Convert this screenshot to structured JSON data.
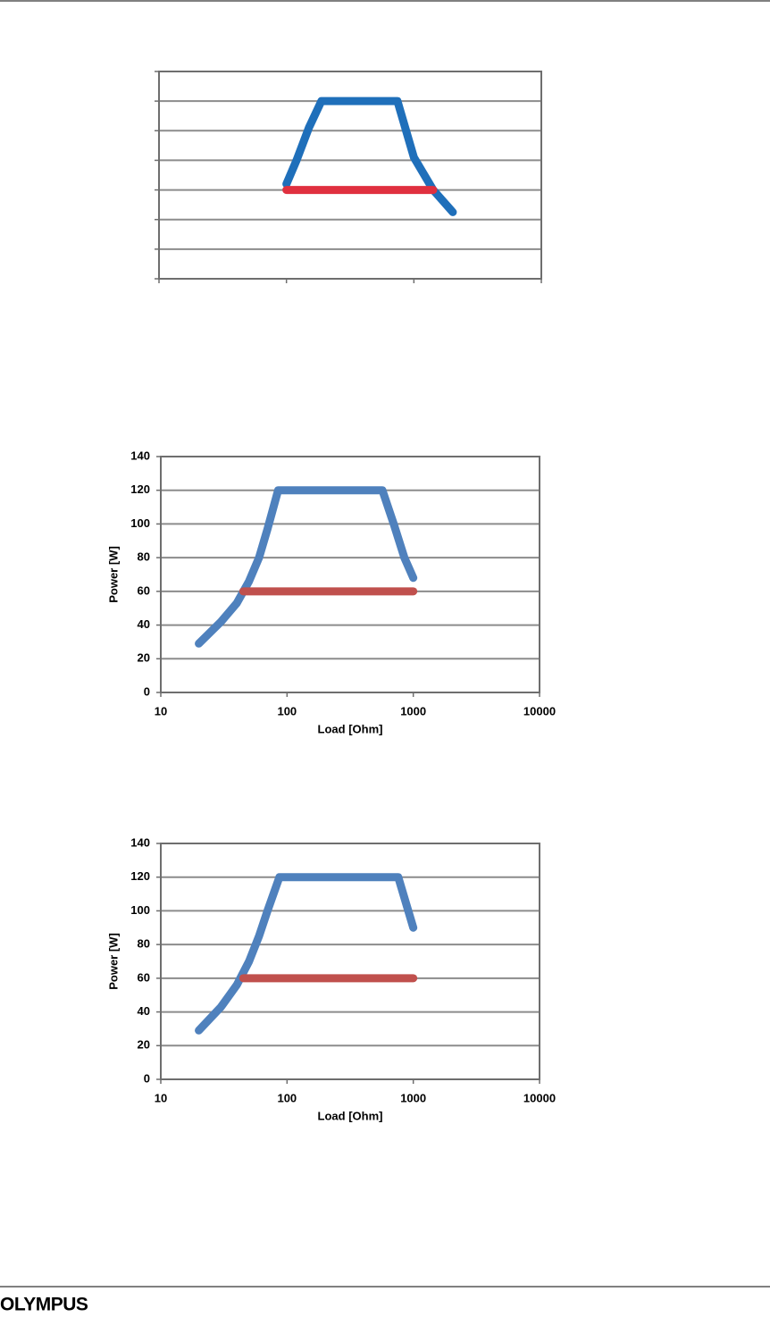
{
  "chart_data": [
    {
      "type": "line",
      "xscale": "log",
      "show_tick_labels": false,
      "grid": true,
      "xlim": [
        10,
        10000
      ],
      "xticks": [
        10,
        100,
        1000,
        10000
      ],
      "ylim": [
        0,
        140
      ],
      "yticks": [
        0,
        20,
        40,
        60,
        80,
        100,
        120,
        140
      ],
      "series": [
        {
          "color": "#1f6fba",
          "x": [
            100,
            120,
            150,
            188,
            743,
            1000,
            1417,
            2020
          ],
          "values": [
            64,
            80,
            102,
            120,
            120,
            82,
            60,
            45
          ]
        },
        {
          "color": "#e0303f",
          "x": [
            100,
            1417
          ],
          "values": [
            60,
            60
          ]
        }
      ]
    },
    {
      "type": "line",
      "xscale": "log",
      "show_tick_labels": true,
      "grid": true,
      "x_label": "Load [Ohm]",
      "y_label": "Power [W]",
      "xlim": [
        10,
        10000
      ],
      "xticks": [
        10,
        100,
        1000,
        10000
      ],
      "ylim": [
        0,
        140
      ],
      "yticks": [
        0,
        20,
        40,
        60,
        80,
        100,
        120,
        140
      ],
      "series": [
        {
          "color": "#4f81bd",
          "x": [
            20,
            30,
            40,
            50,
            60,
            70,
            85,
            569,
            700,
            850,
            1000
          ],
          "values": [
            29,
            42,
            53,
            66,
            80,
            97,
            120,
            120,
            100,
            80,
            68
          ]
        },
        {
          "color": "#c0504d",
          "x": [
            45,
            1000
          ],
          "values": [
            60,
            60
          ]
        }
      ]
    },
    {
      "type": "line",
      "xscale": "log",
      "show_tick_labels": true,
      "grid": true,
      "x_label": "Load [Ohm]",
      "y_label": "Power [W]",
      "xlim": [
        10,
        10000
      ],
      "xticks": [
        10,
        100,
        1000,
        10000
      ],
      "ylim": [
        0,
        140
      ],
      "yticks": [
        0,
        20,
        40,
        60,
        80,
        100,
        120,
        140
      ],
      "series": [
        {
          "color": "#4f81bd",
          "x": [
            20,
            30,
            40,
            50,
            60,
            70,
            87,
            760,
            1000
          ],
          "values": [
            29,
            43,
            56,
            70,
            85,
            100,
            120,
            120,
            90
          ]
        },
        {
          "color": "#c0504d",
          "x": [
            45,
            1000
          ],
          "values": [
            60,
            60
          ]
        }
      ]
    }
  ],
  "footer": {
    "logo": "OLYMPUS"
  }
}
